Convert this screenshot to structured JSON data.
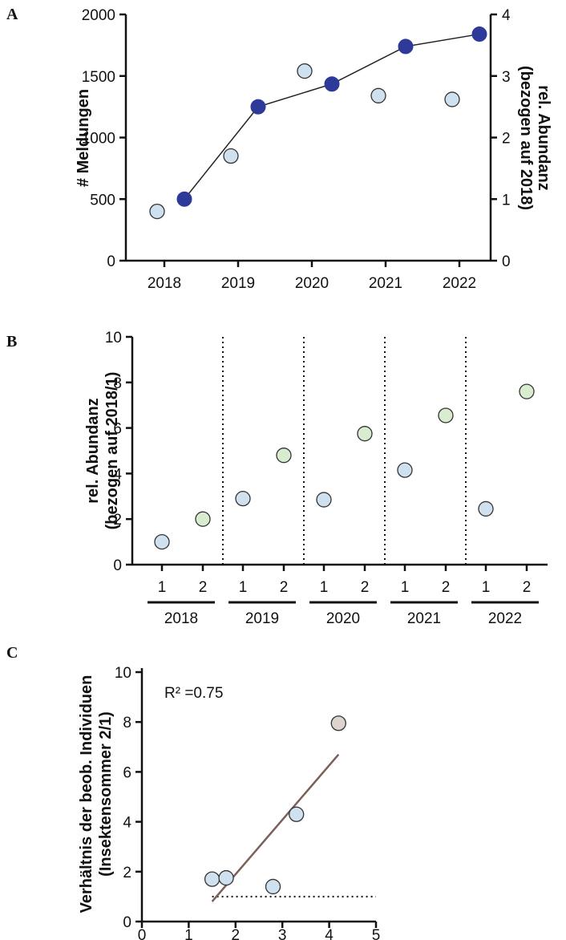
{
  "chart_data": [
    {
      "type": "scatter",
      "panel_label": "A",
      "categories": [
        "2018",
        "2019",
        "2020",
        "2021",
        "2022"
      ],
      "ylabel": "# Meldungen",
      "ylabel_right_line1": "rel. Abundanz",
      "ylabel_right_line2": "(bezogen auf 2018)",
      "ylim": [
        0,
        2000
      ],
      "ylim_right": [
        0,
        4
      ],
      "yticks": [
        "0",
        "500",
        "1000",
        "1500",
        "2000"
      ],
      "yticks_right": [
        "0",
        "1",
        "2",
        "3",
        "4"
      ],
      "series": [
        {
          "values": [
            400,
            850,
            1540,
            1340,
            1310
          ],
          "axis": "left",
          "color": "#cfe0ee"
        },
        {
          "values": [
            1.0,
            2.5,
            2.87,
            3.48,
            3.68
          ],
          "axis": "right",
          "color": "#2e3a9a"
        }
      ]
    },
    {
      "type": "scatter",
      "panel_label": "B",
      "categories": [
        "1",
        "2",
        "1",
        "2",
        "1",
        "2",
        "1",
        "2",
        "1",
        "2"
      ],
      "groups": [
        "2018",
        "2019",
        "2020",
        "2021",
        "2022"
      ],
      "ylabel_line1": "rel. Abundanz",
      "ylabel_line2": "(bezogen auf 2018/1)",
      "ylim": [
        0,
        10
      ],
      "yticks": [
        "0",
        "2",
        "4",
        "6",
        "8",
        "10"
      ],
      "values": [
        1.0,
        2.0,
        2.9,
        4.8,
        2.85,
        5.75,
        4.15,
        6.55,
        2.45,
        7.6
      ],
      "colors": [
        "#cfe0ee",
        "#d8ecd0"
      ]
    },
    {
      "type": "scatter",
      "panel_label": "C",
      "ylabel_line1": "Verhältnis der beob. Individuen",
      "ylabel_line2": "(Insektensommer 2/1)",
      "xlim": [
        0,
        5
      ],
      "ylim": [
        0,
        10
      ],
      "xticks": [
        "0",
        "1",
        "2",
        "3",
        "4",
        "5"
      ],
      "yticks": [
        "0",
        "2",
        "4",
        "6",
        "8",
        "10"
      ],
      "annotation": "R² =0.75",
      "points": [
        {
          "x": 1.5,
          "y": 1.7,
          "color": "#cfe0ee"
        },
        {
          "x": 1.8,
          "y": 1.75,
          "color": "#cfe0ee"
        },
        {
          "x": 2.8,
          "y": 1.4,
          "color": "#cfe0ee"
        },
        {
          "x": 3.3,
          "y": 4.3,
          "color": "#cfe0ee"
        },
        {
          "x": 4.2,
          "y": 7.95,
          "color": "#ddd4d0"
        }
      ],
      "fit_line": {
        "x": [
          1.5,
          4.2
        ],
        "y": [
          0.8,
          6.7
        ],
        "color": "#7a6058"
      },
      "reference_y": 1
    }
  ]
}
